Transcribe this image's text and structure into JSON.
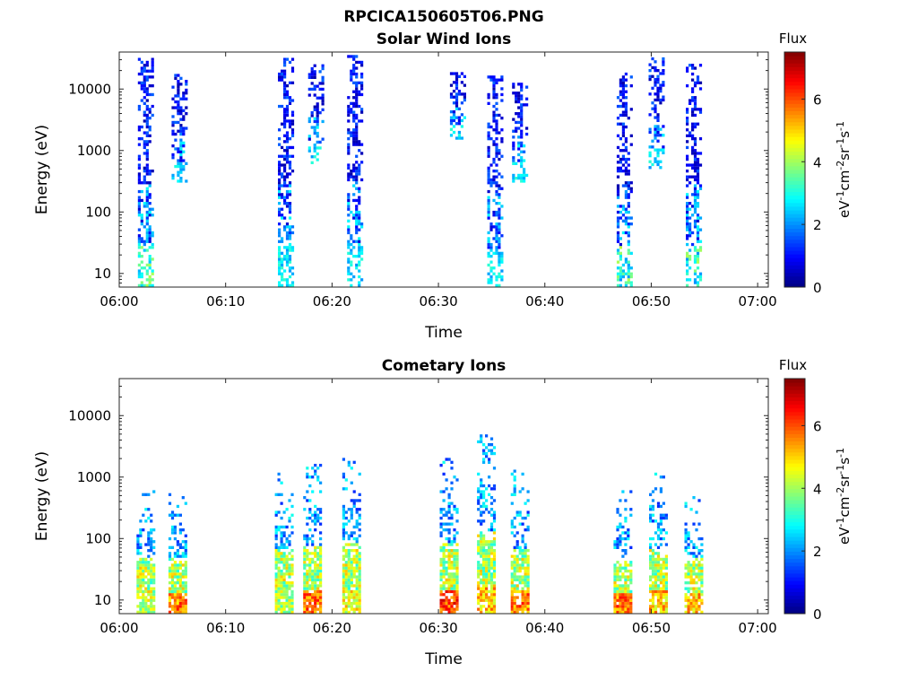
{
  "figure": {
    "title": "RPCICA150605T06.PNG"
  },
  "colormap": {
    "name": "jet",
    "stops": [
      "#00007f",
      "#0000ff",
      "#007fff",
      "#00ffff",
      "#7fff7f",
      "#ffff00",
      "#ff7f00",
      "#ff0000",
      "#7f0000"
    ]
  },
  "chart_data": [
    {
      "type": "heatmap",
      "title": "Solar Wind Ions",
      "xlabel": "Time",
      "ylabel": "Energy (eV)",
      "x_range": [
        "06:00",
        "07:01"
      ],
      "x_ticks": [
        "06:00",
        "06:10",
        "06:20",
        "06:30",
        "06:40",
        "06:50",
        "07:00"
      ],
      "y_scale": "log",
      "y_range": [
        6,
        40000
      ],
      "y_ticks": [
        10,
        100,
        1000,
        10000
      ],
      "y_tick_labels": [
        "10",
        "100",
        "1000",
        "10000"
      ],
      "colorbar": {
        "title": "Flux",
        "label": "eV-1cm-2sr-1s-1",
        "range": [
          0,
          7.5
        ],
        "ticks": [
          0,
          2,
          4,
          6
        ],
        "tick_labels": [
          "0",
          "2",
          "4",
          "6"
        ]
      },
      "grid": false,
      "bursts": [
        {
          "time": "06:02:30",
          "emin": 6,
          "emax": 30000,
          "flux": "low, 6-15 near 10 eV"
        },
        {
          "time": "06:05:40",
          "emin": 300,
          "emax": 17000,
          "flux": "low"
        },
        {
          "time": "06:15:40",
          "emin": 6,
          "emax": 30000,
          "flux": "low"
        },
        {
          "time": "06:18:30",
          "emin": 600,
          "emax": 25000,
          "flux": "low"
        },
        {
          "time": "06:22:10",
          "emin": 6,
          "emax": 35000,
          "flux": "low"
        },
        {
          "time": "06:31:50",
          "emin": 1500,
          "emax": 19000,
          "flux": "low"
        },
        {
          "time": "06:35:20",
          "emin": 6,
          "emax": 15000,
          "flux": "low"
        },
        {
          "time": "06:37:40",
          "emin": 300,
          "emax": 12000,
          "flux": "low"
        },
        {
          "time": "06:47:30",
          "emin": 6,
          "emax": 18000,
          "flux": "low, up to ~4 near 10 eV"
        },
        {
          "time": "06:50:30",
          "emin": 500,
          "emax": 30000,
          "flux": "low"
        },
        {
          "time": "06:54:00",
          "emin": 6,
          "emax": 25000,
          "flux": "low, up to ~4 near 20 eV"
        }
      ]
    },
    {
      "type": "heatmap",
      "title": "Cometary Ions",
      "xlabel": "Time",
      "ylabel": "Energy (eV)",
      "x_range": [
        "06:00",
        "07:01"
      ],
      "x_ticks": [
        "06:00",
        "06:10",
        "06:20",
        "06:30",
        "06:40",
        "06:50",
        "07:00"
      ],
      "y_scale": "log",
      "y_range": [
        6,
        40000
      ],
      "y_ticks": [
        10,
        100,
        1000,
        10000
      ],
      "y_tick_labels": [
        "10",
        "100",
        "1000",
        "10000"
      ],
      "colorbar": {
        "title": "Flux",
        "label": "eV-1cm-2sr-1s-1",
        "range": [
          0,
          7.5
        ],
        "ticks": [
          0,
          2,
          4,
          6
        ],
        "tick_labels": [
          "0",
          "2",
          "4",
          "6"
        ]
      },
      "grid": false,
      "bursts": [
        {
          "time": "06:02:30",
          "emin": 6,
          "emax": 550,
          "flux": "up to ~5"
        },
        {
          "time": "06:05:30",
          "emin": 6,
          "emax": 500,
          "flux": "up to ~6.5"
        },
        {
          "time": "06:15:30",
          "emin": 6,
          "emax": 1300,
          "flux": "up to ~5"
        },
        {
          "time": "06:18:10",
          "emin": 6,
          "emax": 1600,
          "flux": "up to ~6.5"
        },
        {
          "time": "06:21:50",
          "emin": 6,
          "emax": 2000,
          "flux": "up to ~5.5"
        },
        {
          "time": "06:31:00",
          "emin": 6,
          "emax": 2000,
          "flux": "up to ~7"
        },
        {
          "time": "06:34:30",
          "emin": 6,
          "emax": 5200,
          "flux": "up to ~6"
        },
        {
          "time": "06:37:40",
          "emin": 6,
          "emax": 1300,
          "flux": "up to ~6.5"
        },
        {
          "time": "06:47:20",
          "emin": 6,
          "emax": 600,
          "flux": "up to ~6.5"
        },
        {
          "time": "06:50:40",
          "emin": 6,
          "emax": 1100,
          "flux": "up to ~6"
        },
        {
          "time": "06:54:00",
          "emin": 6,
          "emax": 500,
          "flux": "up to ~6"
        }
      ]
    }
  ]
}
